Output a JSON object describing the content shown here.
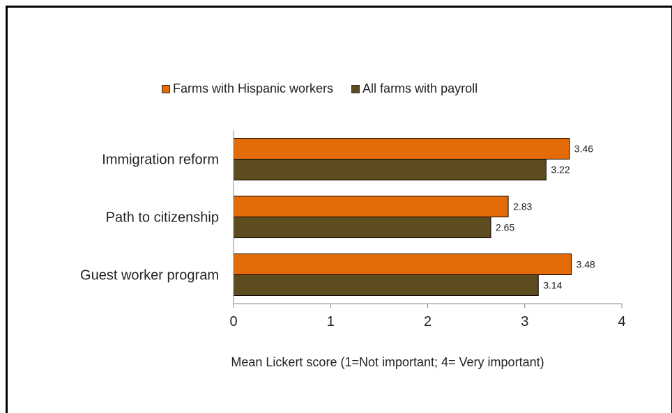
{
  "chart_data": {
    "type": "bar",
    "orientation": "horizontal",
    "categories": [
      "Immigration reform",
      "Path to citizenship",
      "Guest worker program"
    ],
    "series": [
      {
        "name": "Farms with Hispanic workers",
        "color": "#e36c09",
        "values": [
          3.46,
          2.83,
          3.48
        ]
      },
      {
        "name": "All farms with payroll",
        "color": "#5d4c20",
        "values": [
          3.22,
          2.65,
          3.14
        ]
      }
    ],
    "xlabel": "Mean Lickert score (1=Not important; 4= Very important)",
    "xlim": [
      0,
      4
    ],
    "xticks": [
      "0",
      "1",
      "2",
      "3",
      "4"
    ],
    "value_labels": [
      [
        "3.46",
        "2.83",
        "3.48"
      ],
      [
        "3.22",
        "2.65",
        "3.14"
      ]
    ],
    "legend_position": "top",
    "grid": false
  }
}
